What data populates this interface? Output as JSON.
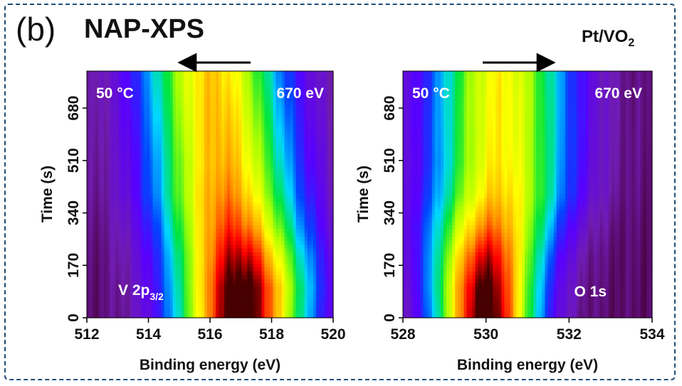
{
  "figure": {
    "panel_label": "(b)",
    "title": "NAP-XPS",
    "sample_main": "Pt/VO",
    "sample_sub": "2"
  },
  "chart_data": [
    {
      "type": "heatmap",
      "name": "V 2p3/2",
      "xlabel": "Binding energy (eV)",
      "ylabel": "Time (s)",
      "xlim": [
        512,
        520
      ],
      "ylim": [
        0,
        800
      ],
      "xticks": [
        512,
        514,
        516,
        518,
        520
      ],
      "yticks": [
        0,
        170,
        340,
        510,
        680
      ],
      "annotations": {
        "temperature": "50 °C",
        "photon_energy": "670 eV",
        "region_main": "V 2p",
        "region_sub": "3/2"
      },
      "shift_arrow": "left",
      "peak": {
        "times": [
          0,
          100,
          200,
          300,
          400,
          500,
          600,
          700,
          800
        ],
        "centers": [
          517.0,
          517.0,
          516.9,
          516.7,
          516.5,
          516.4,
          516.3,
          516.2,
          516.1
        ],
        "fwhm": [
          3.6,
          3.7,
          3.8,
          3.9,
          4.0,
          4.0,
          4.0,
          4.0,
          4.0
        ],
        "intensity": [
          1.0,
          0.99,
          0.92,
          0.84,
          0.79,
          0.76,
          0.75,
          0.74,
          0.73
        ]
      }
    },
    {
      "type": "heatmap",
      "name": "O 1s",
      "xlabel": "Binding energy (eV)",
      "ylabel": "Time (s)",
      "xlim": [
        528,
        534
      ],
      "ylim": [
        0,
        800
      ],
      "xticks": [
        528,
        530,
        532,
        534
      ],
      "yticks": [
        0,
        170,
        340,
        510,
        680
      ],
      "annotations": {
        "temperature": "50 °C",
        "photon_energy": "670 eV",
        "region": "O 1s"
      },
      "shift_arrow": "right",
      "peak": {
        "times": [
          0,
          100,
          200,
          300,
          400,
          500,
          600,
          700,
          800
        ],
        "centers": [
          530.0,
          530.0,
          530.05,
          530.15,
          530.3,
          530.35,
          530.35,
          530.35,
          530.35
        ],
        "fwhm": [
          2.1,
          2.2,
          2.35,
          2.6,
          2.8,
          2.85,
          2.9,
          2.9,
          2.9
        ],
        "intensity": [
          1.0,
          0.97,
          0.9,
          0.8,
          0.73,
          0.7,
          0.69,
          0.69,
          0.68
        ]
      }
    }
  ]
}
